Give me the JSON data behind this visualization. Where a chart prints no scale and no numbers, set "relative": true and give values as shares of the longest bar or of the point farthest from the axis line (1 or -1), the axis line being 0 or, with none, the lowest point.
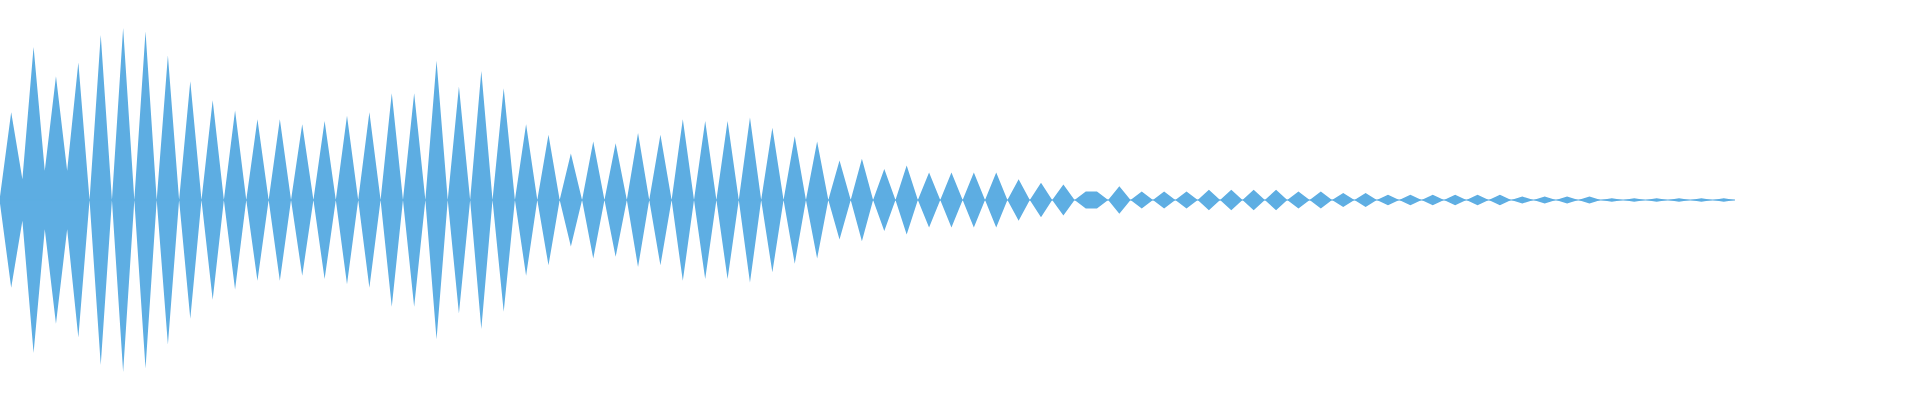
{
  "chart_data": {
    "type": "area",
    "relative": true,
    "categories": [
      null,
      null,
      null,
      null,
      null,
      null,
      null,
      null,
      null,
      null,
      null,
      null,
      null,
      null,
      null,
      null,
      null,
      null,
      null,
      null,
      null,
      null,
      null,
      null,
      null,
      null,
      null,
      null,
      null,
      null,
      null,
      null,
      null,
      null,
      null,
      null,
      null,
      null,
      null,
      null,
      null,
      null,
      null,
      null,
      null,
      null,
      null,
      null,
      null,
      null,
      null,
      null,
      null,
      null,
      null,
      null,
      null,
      null,
      null,
      null,
      null,
      null,
      null,
      null,
      null,
      null,
      null,
      null,
      null,
      null,
      null,
      null,
      null,
      null,
      null,
      null,
      null,
      null,
      null,
      null,
      null,
      null,
      null,
      null,
      null,
      null,
      null,
      null,
      null,
      null,
      null,
      null,
      null,
      null,
      null,
      null,
      null,
      null,
      null,
      null,
      null,
      null,
      null,
      null,
      null,
      null,
      null,
      null,
      null,
      null,
      null,
      null,
      null,
      null,
      null,
      null,
      null,
      null,
      null,
      null,
      null,
      null,
      null,
      null,
      null,
      null,
      null,
      null,
      null,
      null,
      null,
      null,
      null,
      null,
      null,
      null,
      null,
      null,
      null,
      null,
      null,
      null,
      null,
      null,
      null,
      null,
      null,
      null,
      null,
      null,
      null,
      null,
      null,
      null,
      null,
      null
    ],
    "series": [
      {
        "color": "#5dade2",
        "values": [
          0.02,
          0.51,
          0.12,
          0.89,
          0.17,
          0.72,
          0.17,
          0.8,
          0,
          0.96,
          0,
          1,
          0,
          0.98,
          0,
          0.84,
          0,
          0.69,
          0,
          0.58,
          0,
          0.52,
          0,
          0.47,
          0,
          0.47,
          0,
          0.44,
          0,
          0.46,
          0,
          0.49,
          0,
          0.51,
          0,
          0.62,
          0,
          0.62,
          0,
          0.81,
          0,
          0.66,
          0,
          0.75,
          0,
          0.65,
          0,
          0.44,
          0,
          0.38,
          0,
          0.27,
          0,
          0.34,
          0,
          0.33,
          0,
          0.39,
          0,
          0.38,
          0,
          0.47,
          0,
          0.46,
          0,
          0.46,
          0,
          0.48,
          0,
          0.42,
          0,
          0.37,
          0,
          0.34,
          0,
          0.23,
          0,
          0.24,
          0,
          0.18,
          0,
          0.2,
          0,
          0.16,
          0,
          0.16,
          0,
          0.16,
          0,
          0.16,
          0,
          0.12,
          0,
          0.1,
          0,
          0.09,
          0,
          0.05,
          0.05,
          0,
          0.08,
          0,
          0.05,
          0,
          0.05,
          0,
          0.05,
          0,
          0.06,
          0,
          0.06,
          0,
          0.06,
          0,
          0.06,
          0,
          0.05,
          0,
          0.05,
          0,
          0.04,
          0,
          0.04,
          0,
          0.03,
          0,
          0.03,
          0,
          0.03,
          0,
          0.03,
          0,
          0.03,
          0,
          0.03,
          0,
          0.02,
          0,
          0.02,
          0,
          0.02,
          0,
          0.02,
          0,
          0.01,
          0,
          0.01,
          0,
          0.01,
          0,
          0.01,
          0,
          0.01,
          0,
          0.01,
          0
        ]
      },
      {
        "color": "#5eaee3",
        "values": [
          -0.02,
          -0.51,
          -0.12,
          -0.89,
          -0.17,
          -0.72,
          -0.17,
          -0.8,
          0,
          -0.96,
          0,
          -1,
          0,
          -0.98,
          0,
          -0.84,
          0,
          -0.69,
          0,
          -0.58,
          0,
          -0.52,
          0,
          -0.47,
          0,
          -0.47,
          0,
          -0.44,
          0,
          -0.46,
          0,
          -0.49,
          0,
          -0.51,
          0,
          -0.62,
          0,
          -0.62,
          0,
          -0.81,
          0,
          -0.66,
          0,
          -0.75,
          0,
          -0.65,
          0,
          -0.44,
          0,
          -0.38,
          0,
          -0.27,
          0,
          -0.34,
          0,
          -0.33,
          0,
          -0.39,
          0,
          -0.38,
          0,
          -0.47,
          0,
          -0.46,
          0,
          -0.46,
          0,
          -0.48,
          0,
          -0.42,
          0,
          -0.37,
          0,
          -0.34,
          0,
          -0.23,
          0,
          -0.24,
          0,
          -0.18,
          0,
          -0.2,
          0,
          -0.16,
          0,
          -0.16,
          0,
          -0.16,
          0,
          -0.16,
          0,
          -0.12,
          0,
          -0.1,
          0,
          -0.09,
          0,
          -0.05,
          -0.05,
          0,
          -0.08,
          0,
          -0.05,
          0,
          -0.05,
          0,
          -0.05,
          0,
          -0.06,
          0,
          -0.06,
          0,
          -0.06,
          0,
          -0.06,
          0,
          -0.05,
          0,
          -0.05,
          0,
          -0.04,
          0,
          -0.04,
          0,
          -0.03,
          0,
          -0.03,
          0,
          -0.03,
          0,
          -0.03,
          0,
          -0.03,
          0,
          -0.03,
          0,
          -0.02,
          0,
          -0.02,
          0,
          -0.02,
          0,
          -0.02,
          0,
          -0.01,
          0,
          -0.01,
          0,
          -0.01,
          0,
          -0.01,
          0,
          -0.01,
          0,
          -0.01,
          0
        ]
      }
    ]
  }
}
